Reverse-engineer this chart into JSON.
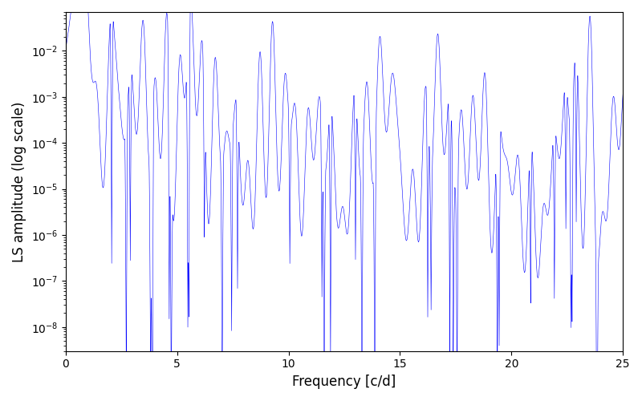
{
  "xlabel": "Frequency [c/d]",
  "ylabel": "LS amplitude (log scale)",
  "line_color": "#0000ff",
  "xlim": [
    0,
    25
  ],
  "ylim": [
    3e-09,
    0.07
  ],
  "freq_max": 25,
  "n_points": 5000,
  "seed": 12345,
  "figsize": [
    8.0,
    5.0
  ],
  "dpi": 100,
  "linewidth": 0.4
}
